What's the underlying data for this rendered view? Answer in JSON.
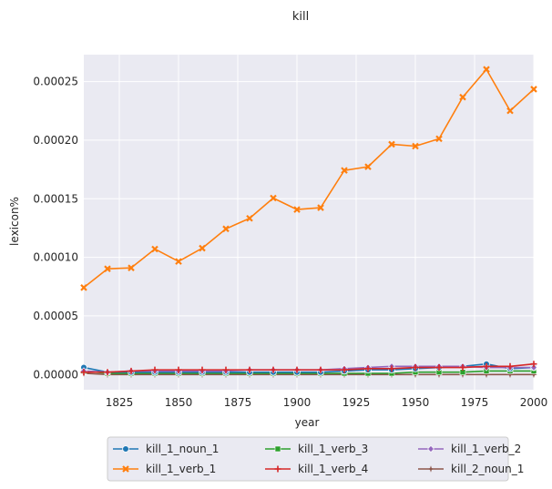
{
  "chart_data": {
    "type": "line",
    "title": "kill",
    "xlabel": "year",
    "ylabel": "lexicon%",
    "xlim": [
      1810,
      2000
    ],
    "ylim": [
      -1.3e-05,
      0.000273
    ],
    "x_ticks": [
      1825,
      1850,
      1875,
      1900,
      1925,
      1950,
      1975,
      2000
    ],
    "x_tick_labels": [
      "1825",
      "1850",
      "1875",
      "1900",
      "1925",
      "1950",
      "1975",
      "2000"
    ],
    "y_ticks": [
      0.0,
      5e-05,
      0.0001,
      0.00015,
      0.0002,
      0.00025
    ],
    "y_tick_labels": [
      "0.00000",
      "0.00005",
      "0.00010",
      "0.00015",
      "0.00020",
      "0.00025"
    ],
    "grid": true,
    "legend_position": "below",
    "x": [
      1810,
      1820,
      1830,
      1840,
      1850,
      1860,
      1870,
      1880,
      1890,
      1900,
      1910,
      1920,
      1930,
      1940,
      1950,
      1960,
      1970,
      1980,
      1990,
      2000
    ],
    "series": [
      {
        "name": "kill_1_noun_1",
        "color": "#1f77b4",
        "marker": "circle",
        "values": [
          6e-06,
          2e-06,
          2e-06,
          2e-06,
          2e-06,
          2e-06,
          2e-06,
          2e-06,
          2e-06,
          2e-06,
          2e-06,
          3e-06,
          4e-06,
          4e-06,
          5e-06,
          6e-06,
          7e-06,
          9e-06,
          5e-06,
          6e-06
        ]
      },
      {
        "name": "kill_1_verb_1",
        "color": "#ff7f0e",
        "marker": "x",
        "values": [
          7.42e-05,
          9.02e-05,
          9.1e-05,
          0.0001071,
          9.65e-05,
          0.0001078,
          0.0001243,
          0.0001333,
          0.0001506,
          0.0001408,
          0.0001424,
          0.0001742,
          0.0001773,
          0.0001965,
          0.0001949,
          0.0002012,
          0.0002367,
          0.0002604,
          0.0002251,
          0.0002435
        ]
      },
      {
        "name": "kill_1_verb_3",
        "color": "#2ca02c",
        "marker": "square",
        "values": [
          3e-06,
          1e-06,
          1e-06,
          1e-06,
          1e-06,
          1e-06,
          1e-06,
          1e-06,
          1e-06,
          1e-06,
          1e-06,
          1e-06,
          1e-06,
          1e-06,
          2e-06,
          2e-06,
          2e-06,
          3e-06,
          3e-06,
          3e-06
        ]
      },
      {
        "name": "kill_1_verb_4",
        "color": "#d62728",
        "marker": "plus",
        "values": [
          2e-06,
          2e-06,
          3e-06,
          4e-06,
          4e-06,
          4e-06,
          4e-06,
          4e-06,
          4e-06,
          4e-06,
          4e-06,
          4e-06,
          5e-06,
          5e-06,
          6e-06,
          6e-06,
          6e-06,
          7e-06,
          7e-06,
          9e-06
        ]
      },
      {
        "name": "kill_1_verb_2",
        "color": "#9467bd",
        "marker": "diamond",
        "values": [
          3e-06,
          2e-06,
          3e-06,
          3e-06,
          3e-06,
          3e-06,
          3e-06,
          4e-06,
          4e-06,
          4e-06,
          4e-06,
          5e-06,
          6e-06,
          7e-06,
          7e-06,
          7e-06,
          7e-06,
          6e-06,
          6e-06,
          6e-06
        ]
      },
      {
        "name": "kill_2_noun_1",
        "color": "#8c564b",
        "marker": "star",
        "values": [
          1e-06,
          0.0,
          0.0,
          0.0,
          0.0,
          0.0,
          0.0,
          0.0,
          0.0,
          0.0,
          0.0,
          0.0,
          0.0,
          0.0,
          0.0,
          0.0,
          0.0,
          0.0,
          0.0,
          0.0
        ]
      }
    ]
  }
}
